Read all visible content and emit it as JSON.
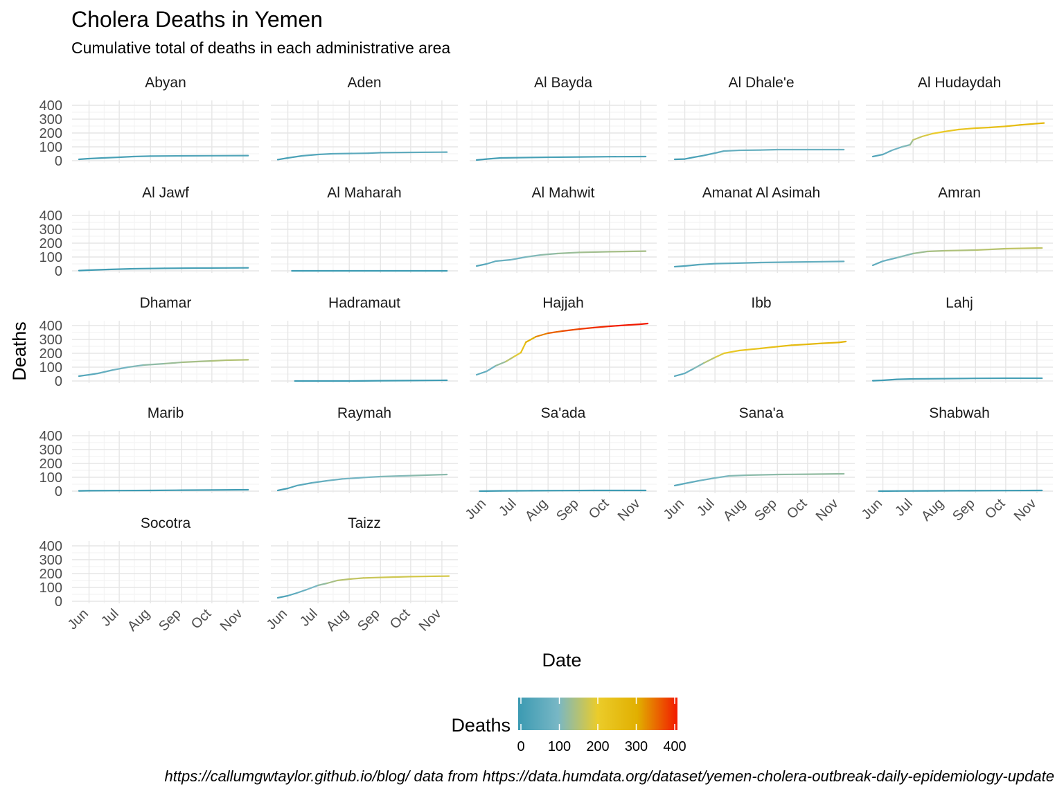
{
  "chart_data": {
    "type": "line",
    "title": "Cholera Deaths in Yemen",
    "subtitle": "Cumulative total of deaths in each administrative area",
    "xlabel": "Date",
    "ylabel": "Deaths",
    "x_tick_labels": [
      "Jun",
      "Jul",
      "Aug",
      "Sep",
      "Oct",
      "Nov"
    ],
    "x_tick_dates": [
      "2017-06-01",
      "2017-07-01",
      "2017-08-01",
      "2017-09-01",
      "2017-10-01",
      "2017-11-01"
    ],
    "xlim": [
      "2017-05-22",
      "2017-11-10"
    ],
    "ylim": [
      0,
      420
    ],
    "y_ticks": [
      0,
      100,
      200,
      300,
      400
    ],
    "grid": true,
    "facet_columns": 5,
    "legend": {
      "title": "Deaths",
      "position": "bottom",
      "type": "colorbar",
      "ticks": [
        0,
        100,
        200,
        300,
        400
      ],
      "colors": [
        "#3B9AB2",
        "#78B7C5",
        "#EBCC2A",
        "#E1AF00",
        "#F21A00"
      ]
    },
    "caption": "https://callumgwtaylor.github.io/blog/ data from https://data.humdata.org/dataset/yemen-cholera-outbreak-daily-epidemiology-update",
    "series": [
      {
        "name": "Abyan",
        "points": [
          [
            "2017-05-22",
            10
          ],
          [
            "2017-06-01",
            15
          ],
          [
            "2017-06-15",
            20
          ],
          [
            "2017-07-01",
            25
          ],
          [
            "2017-07-15",
            30
          ],
          [
            "2017-08-01",
            33
          ],
          [
            "2017-09-01",
            35
          ],
          [
            "2017-10-01",
            36
          ],
          [
            "2017-11-06",
            37
          ]
        ]
      },
      {
        "name": "Aden",
        "points": [
          [
            "2017-05-22",
            8
          ],
          [
            "2017-06-01",
            20
          ],
          [
            "2017-06-15",
            35
          ],
          [
            "2017-07-01",
            45
          ],
          [
            "2017-07-15",
            50
          ],
          [
            "2017-08-01",
            52
          ],
          [
            "2017-08-20",
            54
          ],
          [
            "2017-09-01",
            58
          ],
          [
            "2017-10-01",
            60
          ],
          [
            "2017-11-06",
            62
          ]
        ]
      },
      {
        "name": "Al Bayda",
        "points": [
          [
            "2017-05-22",
            5
          ],
          [
            "2017-06-01",
            12
          ],
          [
            "2017-06-15",
            20
          ],
          [
            "2017-07-01",
            22
          ],
          [
            "2017-08-01",
            25
          ],
          [
            "2017-09-01",
            27
          ],
          [
            "2017-10-01",
            29
          ],
          [
            "2017-11-06",
            30
          ]
        ]
      },
      {
        "name": "Al Dhale'e",
        "points": [
          [
            "2017-05-22",
            10
          ],
          [
            "2017-06-01",
            12
          ],
          [
            "2017-06-10",
            25
          ],
          [
            "2017-06-20",
            38
          ],
          [
            "2017-07-01",
            55
          ],
          [
            "2017-07-10",
            70
          ],
          [
            "2017-07-25",
            75
          ],
          [
            "2017-08-15",
            77
          ],
          [
            "2017-09-01",
            80
          ],
          [
            "2017-10-01",
            80
          ],
          [
            "2017-11-06",
            80
          ]
        ]
      },
      {
        "name": "Al Hudaydah",
        "points": [
          [
            "2017-05-22",
            30
          ],
          [
            "2017-06-01",
            45
          ],
          [
            "2017-06-10",
            75
          ],
          [
            "2017-06-20",
            100
          ],
          [
            "2017-06-28",
            115
          ],
          [
            "2017-07-01",
            150
          ],
          [
            "2017-07-10",
            175
          ],
          [
            "2017-07-20",
            195
          ],
          [
            "2017-08-01",
            210
          ],
          [
            "2017-08-15",
            225
          ],
          [
            "2017-09-01",
            235
          ],
          [
            "2017-09-15",
            240
          ],
          [
            "2017-10-01",
            248
          ],
          [
            "2017-10-15",
            258
          ],
          [
            "2017-11-01",
            268
          ],
          [
            "2017-11-08",
            272
          ]
        ]
      },
      {
        "name": "Al Jawf",
        "points": [
          [
            "2017-05-22",
            2
          ],
          [
            "2017-06-01",
            5
          ],
          [
            "2017-06-20",
            10
          ],
          [
            "2017-07-15",
            15
          ],
          [
            "2017-08-15",
            18
          ],
          [
            "2017-09-15",
            20
          ],
          [
            "2017-10-15",
            21
          ],
          [
            "2017-11-06",
            22
          ]
        ]
      },
      {
        "name": "Al Maharah",
        "points": [
          [
            "2017-06-05",
            0
          ],
          [
            "2017-07-01",
            0
          ],
          [
            "2017-08-01",
            0
          ],
          [
            "2017-09-01",
            0
          ],
          [
            "2017-10-01",
            0
          ],
          [
            "2017-11-06",
            0
          ]
        ]
      },
      {
        "name": "Al Mahwit",
        "points": [
          [
            "2017-05-22",
            35
          ],
          [
            "2017-06-01",
            50
          ],
          [
            "2017-06-10",
            70
          ],
          [
            "2017-06-25",
            80
          ],
          [
            "2017-07-10",
            100
          ],
          [
            "2017-07-25",
            115
          ],
          [
            "2017-08-10",
            125
          ],
          [
            "2017-09-01",
            133
          ],
          [
            "2017-10-01",
            138
          ],
          [
            "2017-11-06",
            142
          ]
        ]
      },
      {
        "name": "Amanat Al Asimah",
        "points": [
          [
            "2017-05-22",
            30
          ],
          [
            "2017-06-01",
            35
          ],
          [
            "2017-06-15",
            45
          ],
          [
            "2017-07-01",
            52
          ],
          [
            "2017-07-20",
            55
          ],
          [
            "2017-08-15",
            60
          ],
          [
            "2017-09-15",
            63
          ],
          [
            "2017-10-15",
            66
          ],
          [
            "2017-11-06",
            68
          ]
        ]
      },
      {
        "name": "Amran",
        "points": [
          [
            "2017-05-22",
            40
          ],
          [
            "2017-06-01",
            70
          ],
          [
            "2017-06-15",
            95
          ],
          [
            "2017-07-01",
            125
          ],
          [
            "2017-07-15",
            140
          ],
          [
            "2017-08-01",
            145
          ],
          [
            "2017-09-01",
            150
          ],
          [
            "2017-10-01",
            160
          ],
          [
            "2017-11-06",
            165
          ]
        ]
      },
      {
        "name": "Dhamar",
        "points": [
          [
            "2017-05-22",
            35
          ],
          [
            "2017-06-01",
            45
          ],
          [
            "2017-06-10",
            55
          ],
          [
            "2017-06-25",
            80
          ],
          [
            "2017-07-10",
            100
          ],
          [
            "2017-07-25",
            115
          ],
          [
            "2017-08-15",
            125
          ],
          [
            "2017-09-01",
            135
          ],
          [
            "2017-10-01",
            145
          ],
          [
            "2017-10-15",
            150
          ],
          [
            "2017-11-06",
            153
          ]
        ]
      },
      {
        "name": "Hadramaut",
        "points": [
          [
            "2017-06-08",
            0
          ],
          [
            "2017-07-01",
            0
          ],
          [
            "2017-08-01",
            0
          ],
          [
            "2017-09-01",
            2
          ],
          [
            "2017-10-01",
            3
          ],
          [
            "2017-11-06",
            5
          ]
        ]
      },
      {
        "name": "Hajjah",
        "points": [
          [
            "2017-05-22",
            45
          ],
          [
            "2017-06-01",
            70
          ],
          [
            "2017-06-10",
            110
          ],
          [
            "2017-06-20",
            140
          ],
          [
            "2017-06-28",
            175
          ],
          [
            "2017-07-05",
            205
          ],
          [
            "2017-07-10",
            280
          ],
          [
            "2017-07-20",
            320
          ],
          [
            "2017-08-01",
            345
          ],
          [
            "2017-08-15",
            360
          ],
          [
            "2017-09-01",
            375
          ],
          [
            "2017-09-15",
            385
          ],
          [
            "2017-10-01",
            395
          ],
          [
            "2017-10-15",
            402
          ],
          [
            "2017-11-01",
            410
          ],
          [
            "2017-11-08",
            415
          ]
        ]
      },
      {
        "name": "Ibb",
        "points": [
          [
            "2017-05-22",
            35
          ],
          [
            "2017-06-01",
            55
          ],
          [
            "2017-06-10",
            90
          ],
          [
            "2017-06-20",
            130
          ],
          [
            "2017-07-01",
            170
          ],
          [
            "2017-07-10",
            200
          ],
          [
            "2017-07-25",
            220
          ],
          [
            "2017-08-15",
            235
          ],
          [
            "2017-09-01",
            248
          ],
          [
            "2017-09-15",
            258
          ],
          [
            "2017-10-01",
            265
          ],
          [
            "2017-10-15",
            272
          ],
          [
            "2017-11-01",
            278
          ],
          [
            "2017-11-08",
            285
          ]
        ]
      },
      {
        "name": "Lahj",
        "points": [
          [
            "2017-05-22",
            2
          ],
          [
            "2017-06-01",
            5
          ],
          [
            "2017-06-15",
            12
          ],
          [
            "2017-07-01",
            15
          ],
          [
            "2017-08-01",
            17
          ],
          [
            "2017-09-01",
            19
          ],
          [
            "2017-10-01",
            20
          ],
          [
            "2017-11-06",
            20
          ]
        ]
      },
      {
        "name": "Marib",
        "points": [
          [
            "2017-05-22",
            2
          ],
          [
            "2017-06-01",
            3
          ],
          [
            "2017-07-01",
            4
          ],
          [
            "2017-08-01",
            5
          ],
          [
            "2017-09-01",
            7
          ],
          [
            "2017-10-01",
            8
          ],
          [
            "2017-11-06",
            10
          ]
        ]
      },
      {
        "name": "Raymah",
        "points": [
          [
            "2017-05-22",
            5
          ],
          [
            "2017-06-01",
            20
          ],
          [
            "2017-06-10",
            40
          ],
          [
            "2017-06-25",
            60
          ],
          [
            "2017-07-10",
            75
          ],
          [
            "2017-07-25",
            88
          ],
          [
            "2017-08-15",
            98
          ],
          [
            "2017-09-01",
            105
          ],
          [
            "2017-10-01",
            112
          ],
          [
            "2017-11-06",
            120
          ]
        ]
      },
      {
        "name": "Sa'ada",
        "points": [
          [
            "2017-05-25",
            0
          ],
          [
            "2017-06-15",
            2
          ],
          [
            "2017-07-15",
            3
          ],
          [
            "2017-08-15",
            4
          ],
          [
            "2017-09-15",
            5
          ],
          [
            "2017-10-15",
            5
          ],
          [
            "2017-11-06",
            5
          ]
        ]
      },
      {
        "name": "Sana'a",
        "points": [
          [
            "2017-05-22",
            40
          ],
          [
            "2017-06-01",
            55
          ],
          [
            "2017-06-15",
            75
          ],
          [
            "2017-07-01",
            95
          ],
          [
            "2017-07-15",
            110
          ],
          [
            "2017-08-01",
            115
          ],
          [
            "2017-09-01",
            120
          ],
          [
            "2017-10-01",
            122
          ],
          [
            "2017-11-06",
            125
          ]
        ]
      },
      {
        "name": "Shabwah",
        "points": [
          [
            "2017-05-28",
            0
          ],
          [
            "2017-06-15",
            1
          ],
          [
            "2017-07-15",
            2
          ],
          [
            "2017-08-15",
            3
          ],
          [
            "2017-10-01",
            4
          ],
          [
            "2017-11-06",
            5
          ]
        ]
      },
      {
        "name": "Socotra",
        "points": []
      },
      {
        "name": "Taizz",
        "points": [
          [
            "2017-05-22",
            25
          ],
          [
            "2017-06-01",
            40
          ],
          [
            "2017-06-10",
            60
          ],
          [
            "2017-06-20",
            85
          ],
          [
            "2017-07-01",
            115
          ],
          [
            "2017-07-10",
            130
          ],
          [
            "2017-07-20",
            150
          ],
          [
            "2017-08-01",
            160
          ],
          [
            "2017-08-15",
            168
          ],
          [
            "2017-09-01",
            172
          ],
          [
            "2017-10-01",
            178
          ],
          [
            "2017-11-08",
            182
          ]
        ]
      }
    ]
  }
}
